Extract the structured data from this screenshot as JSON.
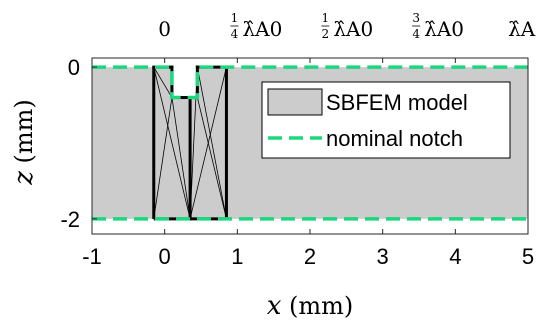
{
  "chart_data": {
    "type": "area",
    "xlabel": {
      "var": "x",
      "unit": "(mm)"
    },
    "ylabel": {
      "var": "z",
      "unit": "(mm)"
    },
    "xlim": [
      -1,
      5
    ],
    "ylim": [
      -2.2,
      0.12
    ],
    "x_ticks": [
      -1,
      0,
      1,
      2,
      3,
      4,
      5
    ],
    "x_tick_labels": [
      "-1",
      "0",
      "1",
      "2",
      "3",
      "4",
      "5"
    ],
    "y_ticks": [
      0,
      -2
    ],
    "y_tick_labels": [
      "0",
      "-2"
    ],
    "top_ticks": [
      {
        "x": 0,
        "numerator": "",
        "denominator": "",
        "label": "0"
      },
      {
        "x": 1.25,
        "numerator": "1",
        "denominator": "4",
        "label": "λ̂A0"
      },
      {
        "x": 2.5,
        "numerator": "1",
        "denominator": "2",
        "label": "λ̂A0"
      },
      {
        "x": 3.75,
        "numerator": "3",
        "denominator": "4",
        "label": "λ̂A0"
      },
      {
        "x": 5,
        "numerator": "",
        "denominator": "",
        "label": "λ̂A0"
      }
    ],
    "grid": false,
    "legend": {
      "position": "top-right",
      "entries": [
        {
          "name": "SBFEM model",
          "kind": "patch",
          "color": "#cccccc"
        },
        {
          "name": "nominal notch",
          "kind": "dashed-line",
          "color": "#1bd87e"
        }
      ]
    },
    "plate": {
      "top": 0,
      "bottom": -2,
      "color": "#cccccc"
    },
    "notch": {
      "x_start": 0.1,
      "x_end": 0.45,
      "depth": -0.4
    },
    "nominal_notch_outline": [
      [
        -1,
        0
      ],
      [
        0.1,
        0
      ],
      [
        0.1,
        -0.4
      ],
      [
        0.45,
        -0.4
      ],
      [
        0.45,
        0
      ],
      [
        5,
        0
      ]
    ],
    "nominal_bottom_line": [
      [
        -1,
        -2
      ],
      [
        5,
        -2
      ]
    ],
    "mesh": {
      "vertical_edges": [
        {
          "x": -0.15,
          "z_top": 0,
          "z_bottom": -2
        },
        {
          "x": 0.35,
          "z_top": -0.4,
          "z_bottom": -2
        },
        {
          "x": 0.85,
          "z_top": 0,
          "z_bottom": -2
        }
      ],
      "notch_edges": [
        [
          [
            -0.15,
            0
          ],
          [
            0.1,
            0
          ]
        ],
        [
          [
            0.1,
            0
          ],
          [
            0.1,
            -0.4
          ]
        ],
        [
          [
            0.1,
            -0.4
          ],
          [
            0.45,
            -0.4
          ]
        ],
        [
          [
            0.45,
            -0.4
          ],
          [
            0.45,
            0
          ]
        ],
        [
          [
            0.45,
            0
          ],
          [
            0.85,
            0
          ]
        ]
      ],
      "bottom_edge": [
        [
          -0.15,
          -2
        ],
        [
          0.85,
          -2
        ]
      ],
      "thin_lines": [
        [
          [
            -0.15,
            0
          ],
          [
            0.1,
            -0.4
          ]
        ],
        [
          [
            -0.15,
            0
          ],
          [
            0.35,
            -2
          ]
        ],
        [
          [
            -0.15,
            -2
          ],
          [
            0.1,
            -0.4
          ]
        ],
        [
          [
            0.35,
            -2
          ],
          [
            0.1,
            -0.4
          ]
        ],
        [
          [
            0.35,
            -0.4
          ],
          [
            0.1,
            -0.4
          ]
        ],
        [
          [
            0.35,
            -2
          ],
          [
            0.45,
            0
          ]
        ],
        [
          [
            0.85,
            -2
          ],
          [
            0.45,
            0
          ]
        ],
        [
          [
            0.85,
            -2
          ],
          [
            0.45,
            -0.4
          ]
        ],
        [
          [
            0.35,
            -2
          ],
          [
            0.85,
            0
          ]
        ]
      ]
    },
    "colors": {
      "plate": "#cccccc",
      "nominal": "#1bd87e",
      "mesh": "#000000",
      "axes": "#262626"
    }
  }
}
